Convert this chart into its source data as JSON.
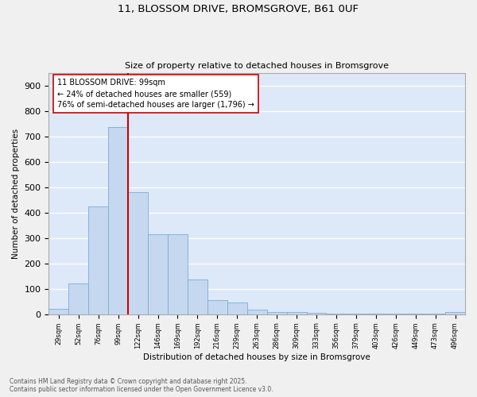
{
  "title_line1": "11, BLOSSOM DRIVE, BROMSGROVE, B61 0UF",
  "title_line2": "Size of property relative to detached houses in Bromsgrove",
  "xlabel": "Distribution of detached houses by size in Bromsgrove",
  "ylabel": "Number of detached properties",
  "bar_color": "#c5d8f0",
  "bar_edge_color": "#7aadd4",
  "background_color": "#dde8f8",
  "grid_color": "#ffffff",
  "fig_bg_color": "#f0f0f0",
  "categories": [
    "29sqm",
    "52sqm",
    "76sqm",
    "99sqm",
    "122sqm",
    "146sqm",
    "169sqm",
    "192sqm",
    "216sqm",
    "239sqm",
    "263sqm",
    "286sqm",
    "309sqm",
    "333sqm",
    "356sqm",
    "379sqm",
    "403sqm",
    "426sqm",
    "449sqm",
    "473sqm",
    "496sqm"
  ],
  "values": [
    20,
    120,
    425,
    735,
    480,
    315,
    315,
    135,
    55,
    45,
    18,
    8,
    7,
    5,
    3,
    2,
    1,
    1,
    1,
    1,
    8
  ],
  "vline_index": 3.5,
  "vline_color": "#cc0000",
  "annotation_title": "11 BLOSSOM DRIVE: 99sqm",
  "annotation_line1": "← 24% of detached houses are smaller (559)",
  "annotation_line2": "76% of semi-detached houses are larger (1,796) →",
  "annotation_box_facecolor": "#ffffff",
  "annotation_box_edgecolor": "#cc0000",
  "ylim": [
    0,
    950
  ],
  "yticks": [
    0,
    100,
    200,
    300,
    400,
    500,
    600,
    700,
    800,
    900
  ],
  "footer_line1": "Contains HM Land Registry data © Crown copyright and database right 2025.",
  "footer_line2": "Contains public sector information licensed under the Open Government Licence v3.0."
}
